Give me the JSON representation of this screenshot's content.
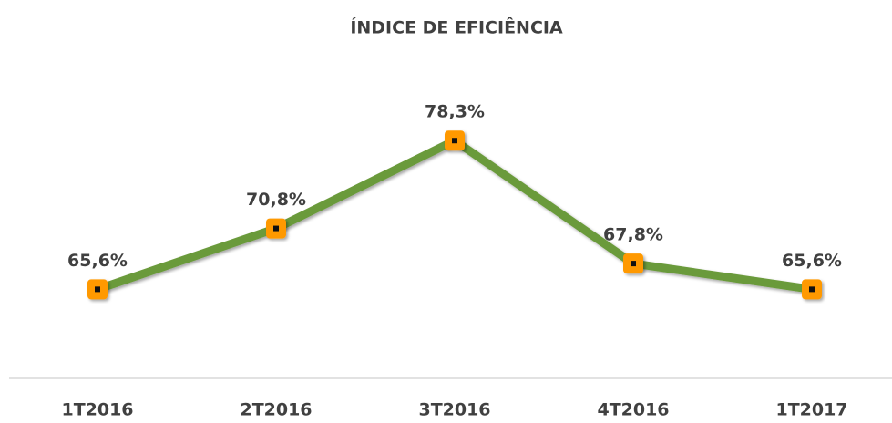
{
  "chart_data": {
    "type": "line",
    "title": "ÍNDICE DE EFICIÊNCIA",
    "categories": [
      "1T2016",
      "2T2016",
      "3T2016",
      "4T2016",
      "1T2017"
    ],
    "values": [
      65.6,
      70.8,
      78.3,
      67.8,
      65.6
    ],
    "value_labels": [
      "65,6%",
      "70,8%",
      "78,3%",
      "67,8%",
      "65,6%"
    ],
    "color": "#6a9a3a",
    "marker_color": "#ff9900",
    "ylim": [
      58,
      84
    ]
  }
}
